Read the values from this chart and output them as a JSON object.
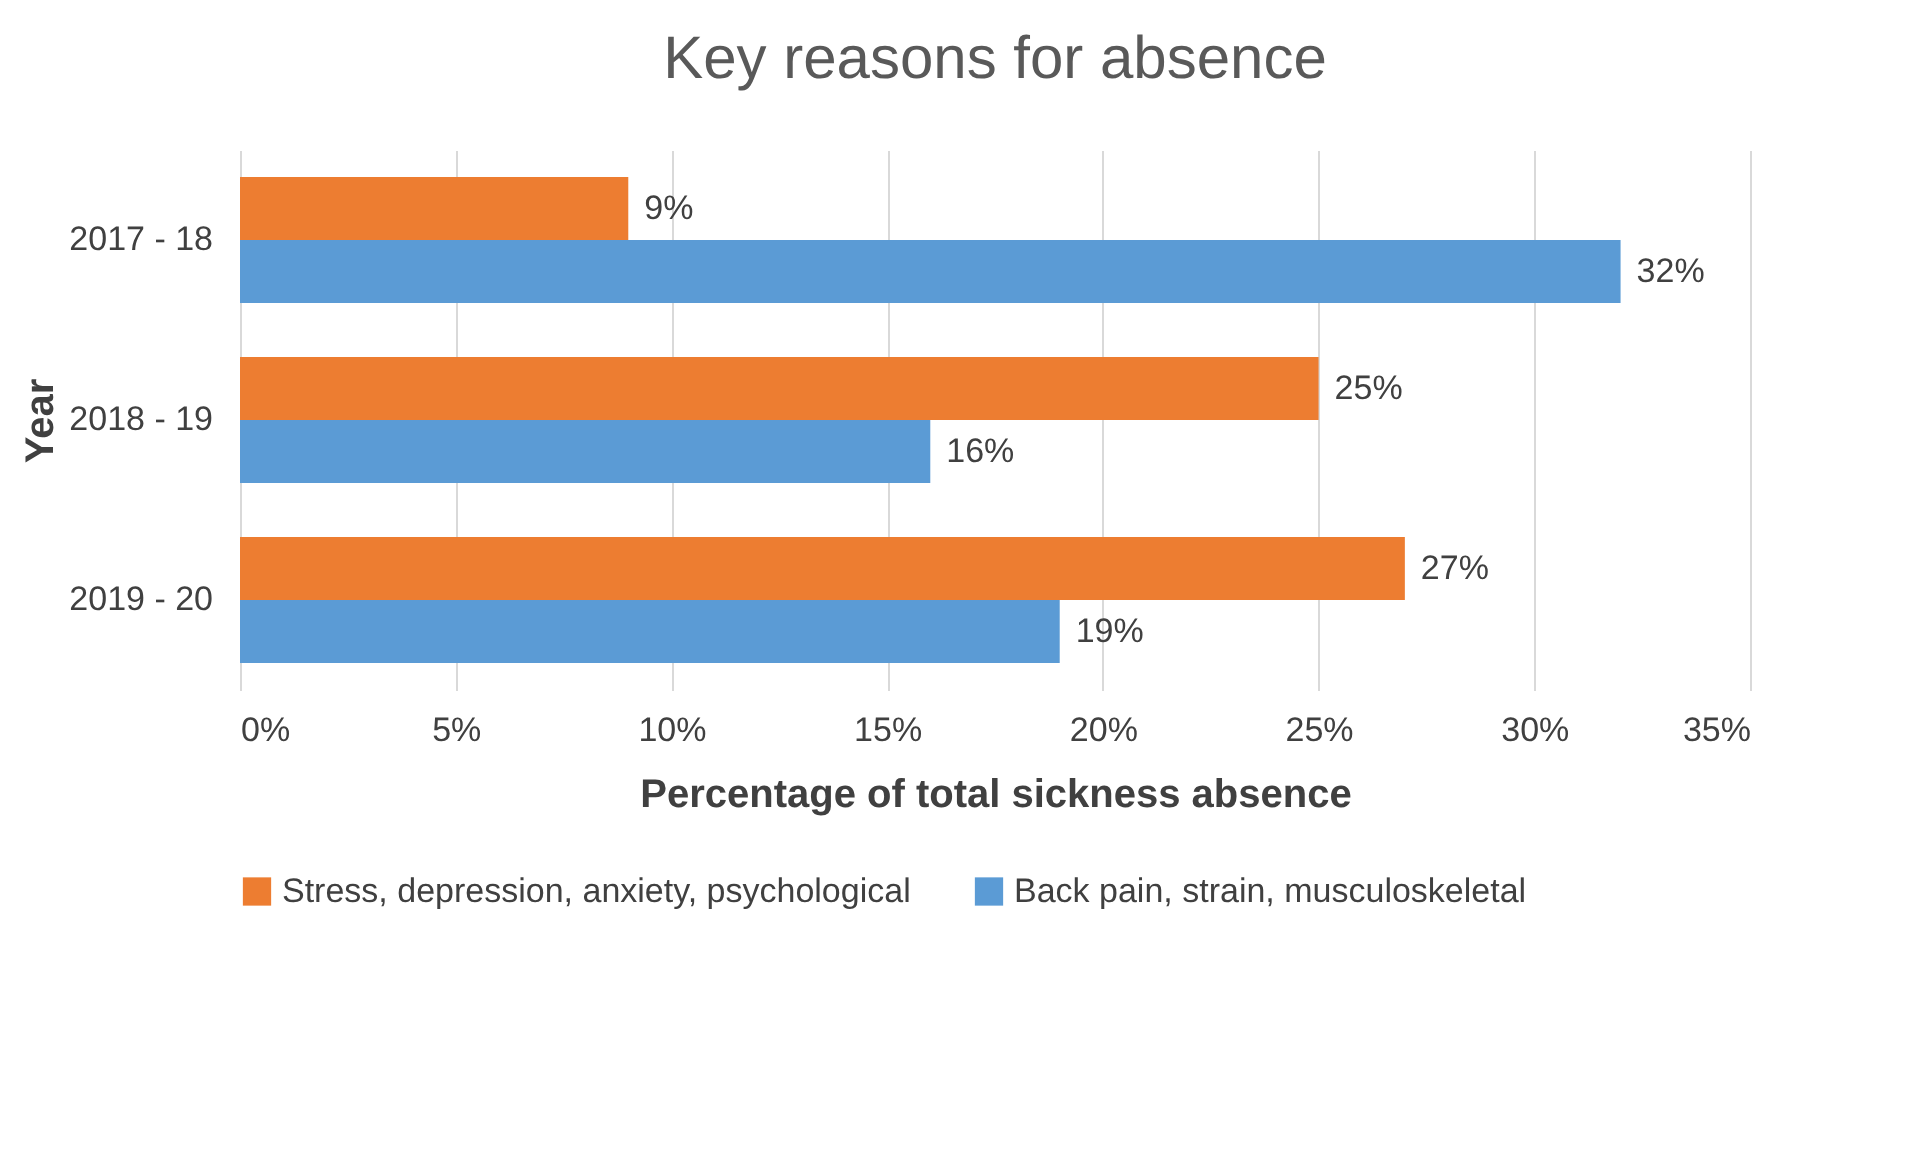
{
  "chart_data": {
    "type": "bar",
    "orientation": "horizontal",
    "title": "Key reasons for absence",
    "xlabel": "Percentage of total sickness absence",
    "ylabel": "Year",
    "categories": [
      "2017 - 18",
      "2018 - 19",
      "2019 - 20"
    ],
    "series": [
      {
        "name": "Stress, depression, anxiety, psychological",
        "color": "#ed7d31",
        "values": [
          9,
          25,
          27
        ],
        "value_labels": [
          "9%",
          "25%",
          "27%"
        ]
      },
      {
        "name": "Back pain, strain, musculoskeletal",
        "color": "#5b9bd5",
        "values": [
          32,
          16,
          19
        ],
        "value_labels": [
          "32%",
          "16%",
          "19%"
        ]
      }
    ],
    "xlim": [
      0,
      35
    ],
    "xticks": [
      {
        "value": 0,
        "label": "0%"
      },
      {
        "value": 5,
        "label": "5%"
      },
      {
        "value": 10,
        "label": "10%"
      },
      {
        "value": 15,
        "label": "15%"
      },
      {
        "value": 20,
        "label": "20%"
      },
      {
        "value": 25,
        "label": "25%"
      },
      {
        "value": 30,
        "label": "30%"
      },
      {
        "value": 35,
        "label": "35%"
      }
    ],
    "grid": "x",
    "legend": "bottom"
  }
}
